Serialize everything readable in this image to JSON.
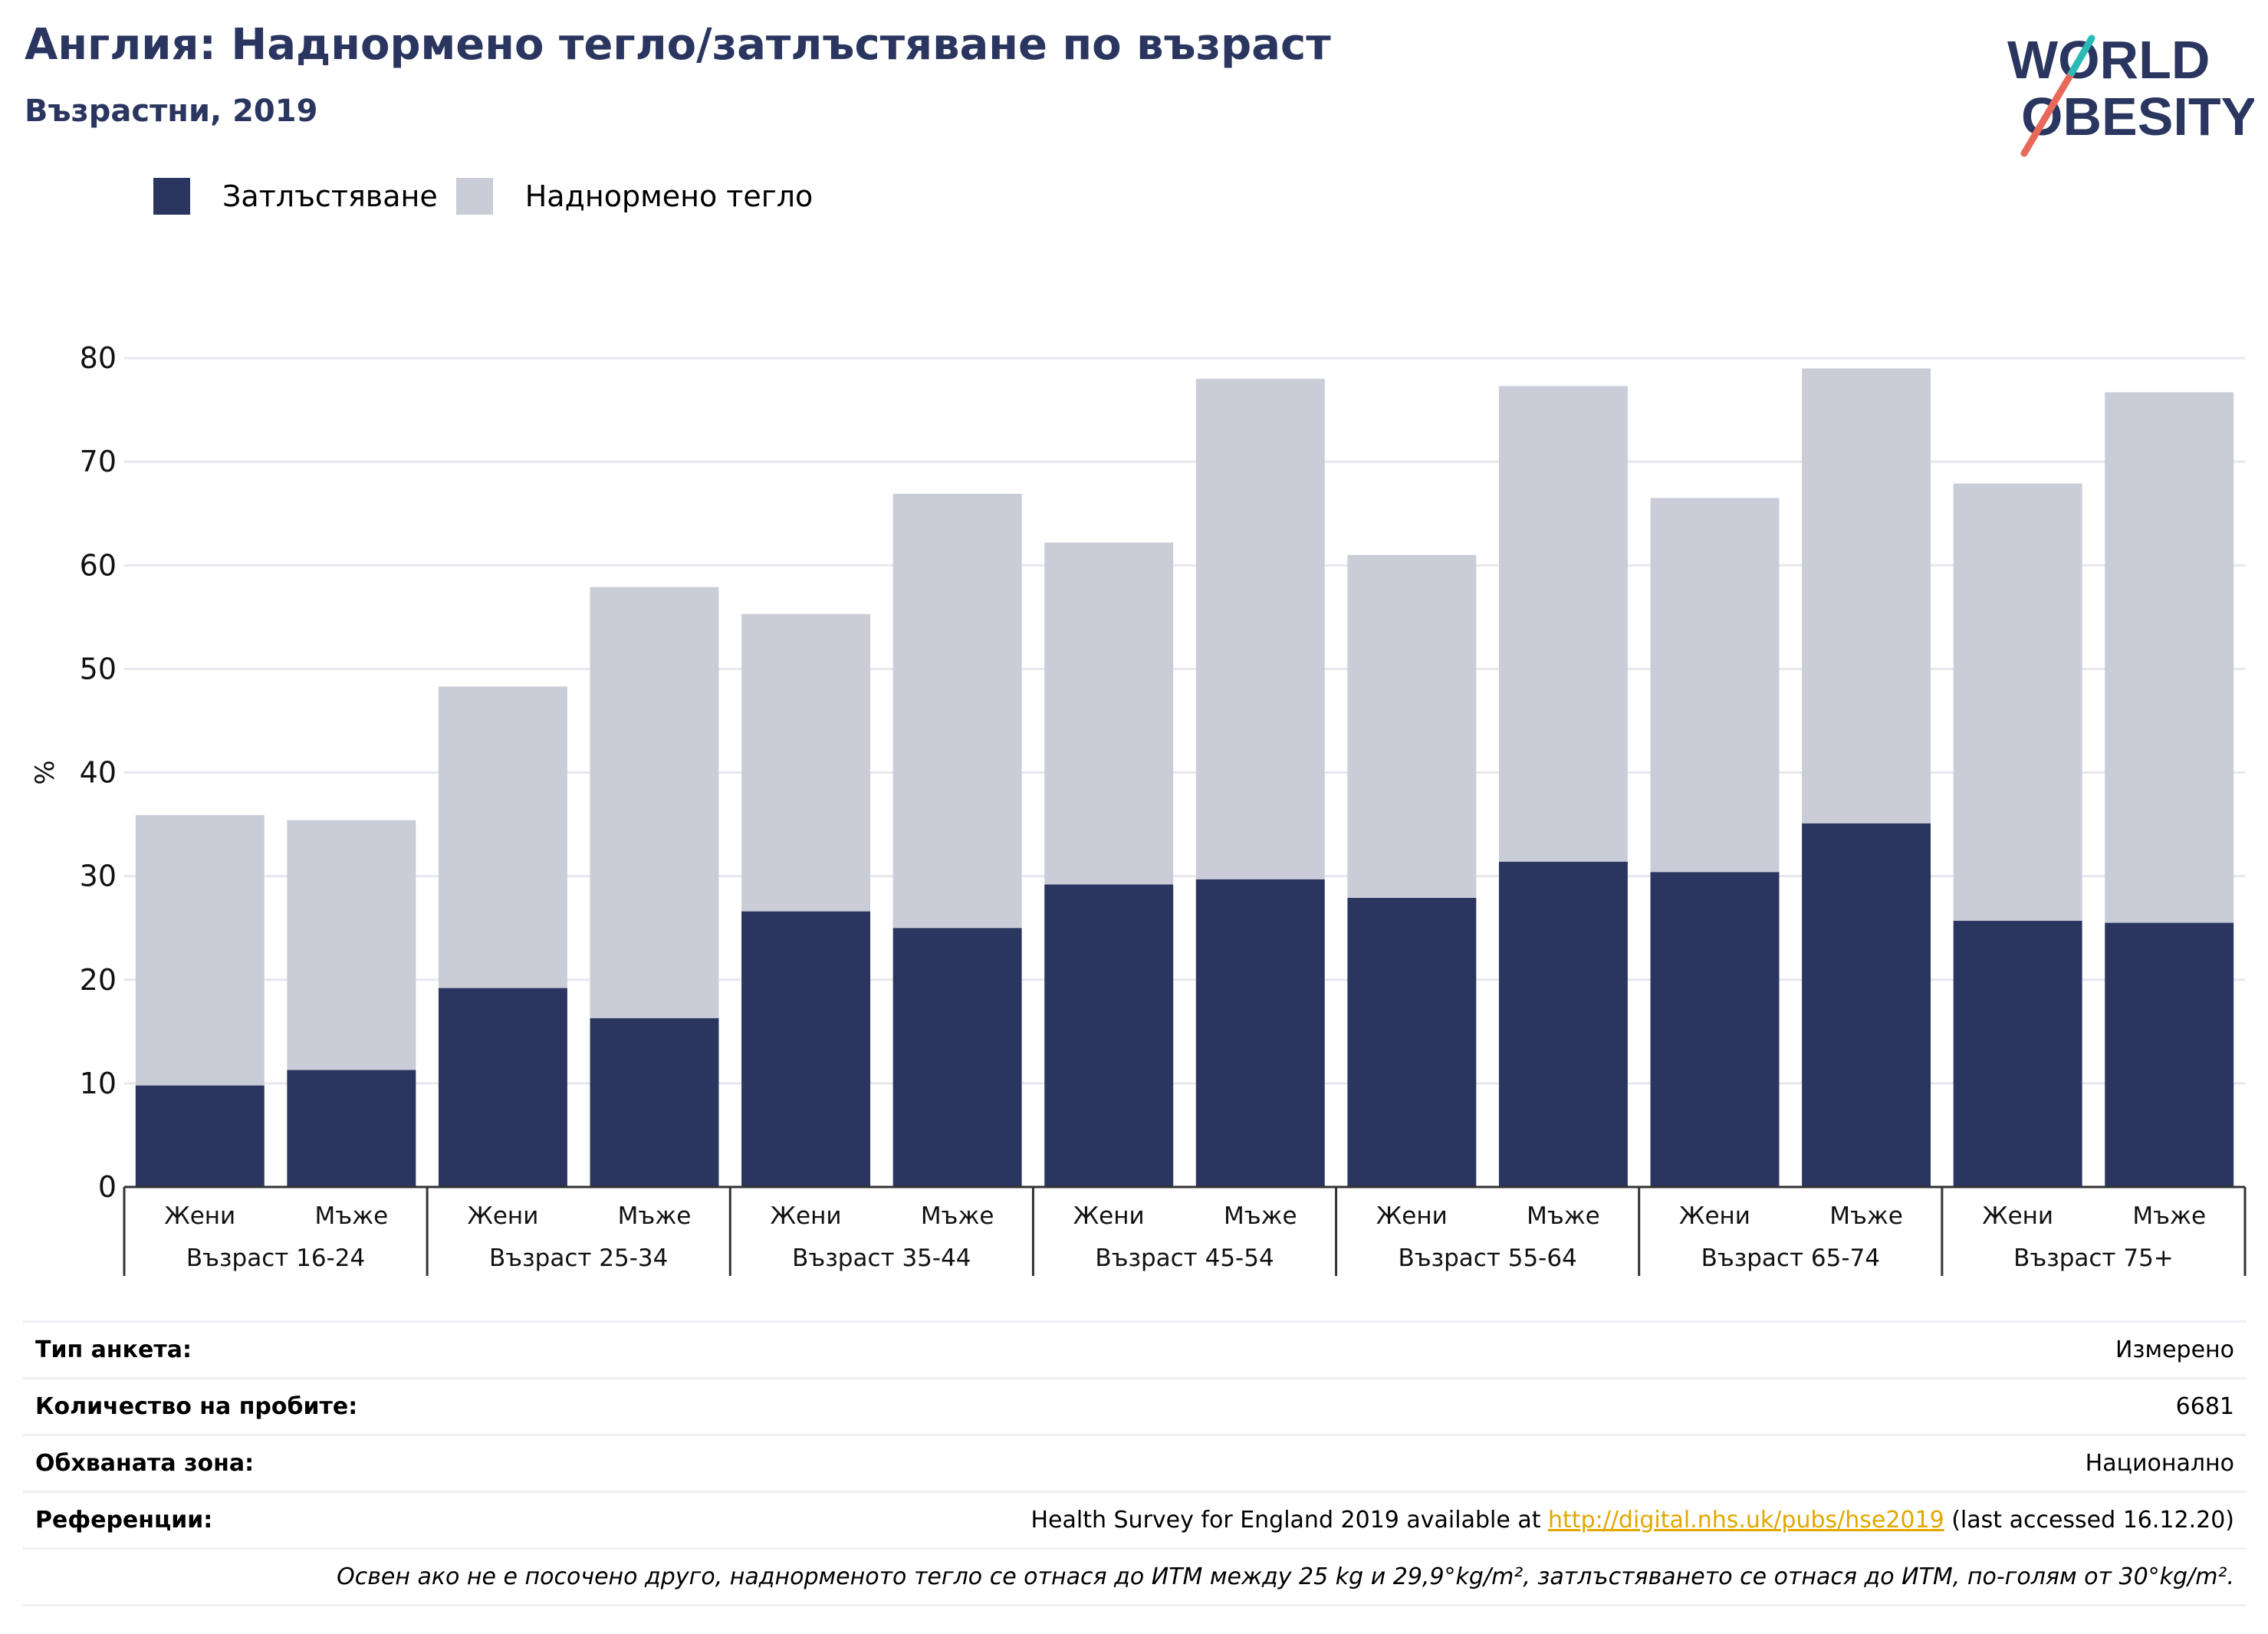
{
  "header": {
    "title": "Англия: Наднормено тегло/затлъстяване по възраст",
    "subtitle": "Възрастни, 2019"
  },
  "logo": {
    "line1": "WORLD",
    "line2": "OBESITY",
    "colors": {
      "text": "#2a365f",
      "slash_red": "#e8695a",
      "slash_teal": "#2bbbb5"
    }
  },
  "legend": [
    {
      "label": "Затлъстяване",
      "color": "#2a365f"
    },
    {
      "label": "Наднормено тегло",
      "color": "#cacdd8"
    }
  ],
  "chart_data": {
    "type": "bar",
    "stacked": true,
    "ylabel": "%",
    "ylim": [
      0,
      80
    ],
    "yticks": [
      0,
      10,
      20,
      30,
      40,
      50,
      60,
      70,
      80
    ],
    "grid": true,
    "legend_position": "top-left",
    "groups": [
      "Възраст 16-24",
      "Възраст 25-34",
      "Възраст 35-44",
      "Възраст 45-54",
      "Възраст 55-64",
      "Възраст 65-74",
      "Възраст 75+"
    ],
    "subcategories": [
      "Жени",
      "Мъже"
    ],
    "series": [
      {
        "name": "Затлъстяване",
        "color": "#2a365f",
        "values": [
          9.8,
          11.3,
          19.2,
          16.3,
          26.6,
          25.0,
          29.2,
          29.7,
          27.9,
          31.4,
          30.4,
          35.1,
          25.7,
          25.5
        ]
      },
      {
        "name": "Наднормено тегло",
        "color": "#cacdd8",
        "values": [
          26.1,
          24.1,
          29.1,
          41.6,
          28.7,
          41.9,
          33.0,
          48.3,
          33.1,
          45.9,
          36.1,
          43.9,
          42.2,
          51.2
        ]
      }
    ]
  },
  "info": {
    "rows": [
      {
        "key": "Тип анкета:",
        "value": "Измерено"
      },
      {
        "key": "Количество на пробите:",
        "value": "6681"
      },
      {
        "key": "Обхваната зона:",
        "value": "Национално"
      }
    ],
    "references": {
      "key": "Референции:",
      "prefix": "Health Survey for England 2019 available at ",
      "link": "http://digital.nhs.uk/pubs/hse2019",
      "suffix": " (last accessed 16.12.20)"
    },
    "note": "Освен ако не е посочено друго, наднорменото тегло се отнася до ИТМ между 25 kg и 29,9°kg/m², затлъстяването се отнася до ИТМ, по-голям от 30°kg/m²."
  }
}
